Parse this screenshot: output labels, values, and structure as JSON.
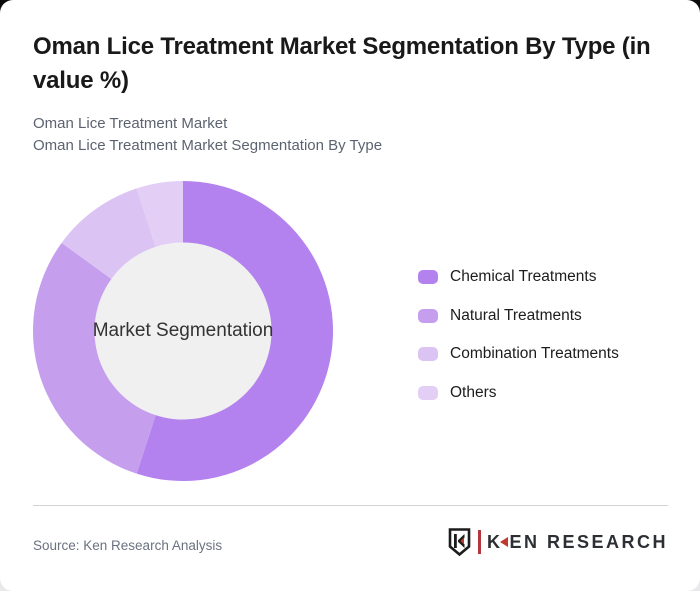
{
  "header": {
    "title": "Oman Lice Treatment Market Segmentation By Type (in value %)",
    "subtitle_line1": "Oman Lice Treatment Market",
    "subtitle_line2": "Oman Lice Treatment Market Segmentation By Type"
  },
  "chart_data": {
    "type": "pie",
    "subtype": "donut",
    "title": "Oman Lice Treatment Market Segmentation By Type (in value %)",
    "center_label": "Market Segmentation",
    "categories": [
      "Chemical Treatments",
      "Natural Treatments",
      "Combination Treatments",
      "Others"
    ],
    "values": [
      55,
      30,
      10,
      5
    ],
    "unit": "%",
    "colors": [
      "#B482EE",
      "#C59EEE",
      "#DBC4F3",
      "#E3CFF6"
    ],
    "center_fill": "#F0F0F0",
    "start_angle_deg": 0,
    "direction": "clockwise",
    "inner_radius_ratio": 0.59,
    "legend_position": "right",
    "data_labels_shown": false
  },
  "footer": {
    "source_text": "Source: Ken Research Analysis",
    "logo": {
      "shield_letter": "K",
      "brand_first_letter": "K",
      "brand_rest": "EN RESEARCH",
      "accent_color": "#c0392f"
    }
  }
}
